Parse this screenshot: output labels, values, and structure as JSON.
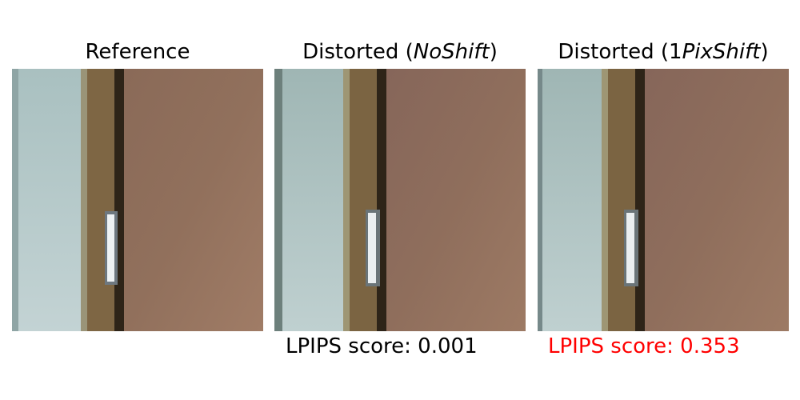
{
  "panels": [
    {
      "title_prefix": "Reference",
      "title_italic": "",
      "title_suffix": "",
      "score_label": "",
      "score_value": "",
      "score_color": "#000000",
      "image_style": "reference"
    },
    {
      "title_prefix": "Distorted (",
      "title_italic": "NoShift",
      "title_suffix": ")",
      "score_label": "LPIPS score: ",
      "score_value": "0.001",
      "score_color": "#000000",
      "image_style": "distorted-no-shift"
    },
    {
      "title_prefix": "Distorted (1",
      "title_italic": "PixShift",
      "title_suffix": ")",
      "score_label": "LPIPS score: ",
      "score_value": "0.353",
      "score_color": "#ff0000",
      "image_style": "distorted-1pix-shift"
    }
  ],
  "colors": {
    "wall": "#b8cccc",
    "door_frame": "#7a6448",
    "door_gap": "#2e2418",
    "door_panel": "#8f6a56",
    "handle": "#e8ecee"
  }
}
